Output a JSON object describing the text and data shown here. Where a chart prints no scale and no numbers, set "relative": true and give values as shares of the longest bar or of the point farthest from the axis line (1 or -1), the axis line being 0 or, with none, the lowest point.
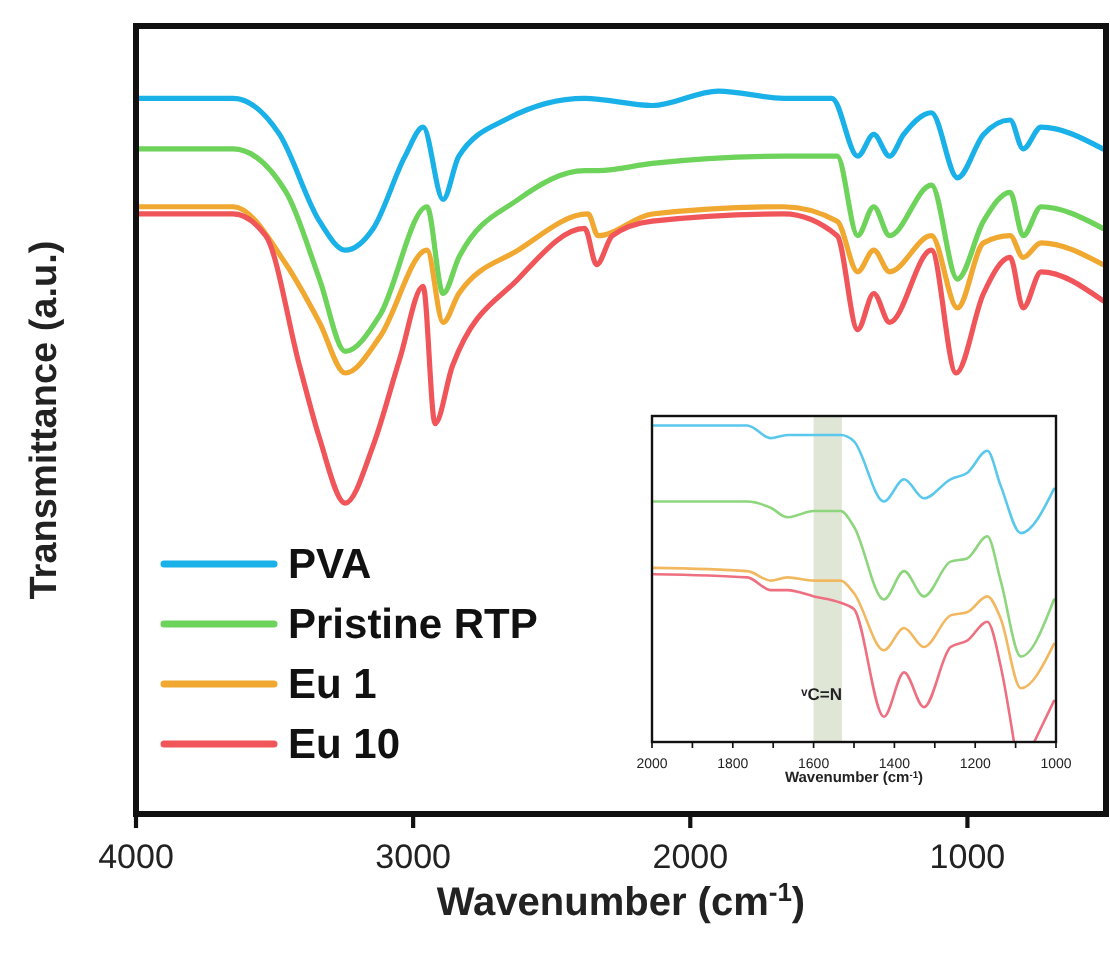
{
  "chart_data": [
    {
      "type": "line",
      "relative": true,
      "xlim": [
        4000,
        500
      ],
      "xticks": [
        4000,
        3000,
        2000,
        1000
      ],
      "xlabel": "Wavenumber (cm$^{-1}$)",
      "ylabel": "Transmittance (a.u.)",
      "legend": "bottom left",
      "series": [
        {
          "name": "PVA",
          "color": "#1ab0e8",
          "x": [
            4000,
            3650,
            3482,
            3338,
            3245,
            3144,
            3029,
            2964,
            2892,
            2835,
            2669,
            2381,
            2137,
            1899,
            1662,
            1489,
            1396,
            1338,
            1281,
            1230,
            1130,
            1036,
            942,
            846,
            799,
            734,
            511
          ],
          "values": [
            0.99,
            0.99,
            0.94,
            0.82,
            0.78,
            0.81,
            0.91,
            0.95,
            0.85,
            0.91,
            0.96,
            0.99,
            0.98,
            1.0,
            0.99,
            0.99,
            0.91,
            0.94,
            0.91,
            0.94,
            0.97,
            0.88,
            0.94,
            0.96,
            0.92,
            0.95,
            0.92
          ]
        },
        {
          "name": "Pristine RTP",
          "color": "#6dd35a",
          "x": [
            4000,
            3650,
            3458,
            3338,
            3245,
            3120,
            2950,
            2892,
            2835,
            2621,
            2381,
            2333,
            2137,
            1662,
            1470,
            1396,
            1338,
            1281,
            1130,
            1036,
            942,
            846,
            799,
            734,
            511
          ],
          "values": [
            0.92,
            0.92,
            0.86,
            0.74,
            0.64,
            0.69,
            0.84,
            0.72,
            0.77,
            0.85,
            0.89,
            0.89,
            0.9,
            0.91,
            0.91,
            0.8,
            0.84,
            0.8,
            0.87,
            0.74,
            0.82,
            0.86,
            0.8,
            0.84,
            0.81
          ]
        },
        {
          "name": "Eu 1",
          "color": "#f0a830",
          "x": [
            4000,
            3650,
            3458,
            3338,
            3245,
            3120,
            2950,
            2892,
            2835,
            2621,
            2369,
            2333,
            2137,
            1662,
            1470,
            1396,
            1338,
            1281,
            1130,
            1036,
            942,
            846,
            799,
            734,
            511
          ],
          "values": [
            0.84,
            0.84,
            0.76,
            0.68,
            0.61,
            0.66,
            0.78,
            0.68,
            0.72,
            0.78,
            0.83,
            0.8,
            0.83,
            0.84,
            0.82,
            0.75,
            0.78,
            0.75,
            0.8,
            0.7,
            0.79,
            0.8,
            0.77,
            0.79,
            0.76
          ]
        },
        {
          "name": "Eu 10",
          "color": "#f0555a",
          "x": [
            4000,
            3750,
            3650,
            3532,
            3410,
            3338,
            3245,
            3144,
            3048,
            2964,
            2921,
            2858,
            2621,
            2381,
            2338,
            2281,
            2137,
            1662,
            1470,
            1396,
            1338,
            1281,
            1130,
            1041,
            942,
            846,
            799,
            734,
            511
          ],
          "values": [
            0.83,
            0.83,
            0.83,
            0.8,
            0.62,
            0.52,
            0.43,
            0.51,
            0.63,
            0.73,
            0.54,
            0.62,
            0.74,
            0.81,
            0.76,
            0.8,
            0.82,
            0.83,
            0.8,
            0.67,
            0.72,
            0.68,
            0.78,
            0.61,
            0.72,
            0.77,
            0.7,
            0.75,
            0.71
          ]
        }
      ]
    },
    {
      "type": "line",
      "relative": true,
      "xlim": [
        2000,
        1000
      ],
      "xticks": [
        2000,
        {
          "value": 1900,
          "label": null
        },
        1800,
        {
          "value": 1700,
          "label": null
        },
        1600,
        {
          "value": 1500,
          "label": null
        },
        1400,
        {
          "value": 1300,
          "label": null
        },
        1200,
        {
          "value": 1100,
          "label": null
        },
        1000
      ],
      "xlabel": "Wavenumber (cm$^{-1}$)",
      "bands": [
        {
          "axis": "x",
          "from": 1600,
          "to": 1530,
          "color": "#dfe6d6"
        }
      ],
      "annotations": [
        "ᵛC=N"
      ],
      "series": [
        {
          "color": "#5ac8ec",
          "x": [
            1995,
            1764,
            1706,
            1665,
            1599,
            1533,
            1500,
            1426,
            1376,
            1327,
            1261,
            1220,
            1170,
            1137,
            1087,
            1005
          ],
          "values": [
            1.0,
            1.0,
            0.96,
            0.97,
            0.97,
            0.97,
            0.95,
            0.76,
            0.83,
            0.77,
            0.83,
            0.85,
            0.92,
            0.81,
            0.66,
            0.8
          ]
        },
        {
          "color": "#8ed67e",
          "x": [
            1995,
            1764,
            1706,
            1665,
            1599,
            1533,
            1500,
            1426,
            1376,
            1327,
            1261,
            1220,
            1170,
            1137,
            1087,
            1005
          ],
          "values": [
            0.76,
            0.76,
            0.74,
            0.71,
            0.73,
            0.73,
            0.68,
            0.45,
            0.54,
            0.46,
            0.57,
            0.58,
            0.65,
            0.51,
            0.27,
            0.45
          ]
        },
        {
          "color": "#f2b860",
          "x": [
            1995,
            1764,
            1706,
            1665,
            1599,
            1533,
            1500,
            1426,
            1376,
            1327,
            1261,
            1220,
            1170,
            1137,
            1087,
            1005
          ],
          "values": [
            0.55,
            0.54,
            0.51,
            0.52,
            0.51,
            0.51,
            0.47,
            0.29,
            0.36,
            0.3,
            0.4,
            0.41,
            0.46,
            0.39,
            0.17,
            0.31
          ]
        },
        {
          "color": "#ee7080",
          "x": [
            1995,
            1764,
            1706,
            1665,
            1599,
            1533,
            1500,
            1426,
            1376,
            1327,
            1261,
            1220,
            1170,
            1137,
            1104,
            1080,
            1054,
            1005
          ],
          "values": [
            0.53,
            0.52,
            0.48,
            0.48,
            0.46,
            0.44,
            0.42,
            0.08,
            0.22,
            0.11,
            0.3,
            0.32,
            0.38,
            0.24,
            0.0,
            null,
            0.0,
            0.13
          ]
        }
      ]
    }
  ]
}
